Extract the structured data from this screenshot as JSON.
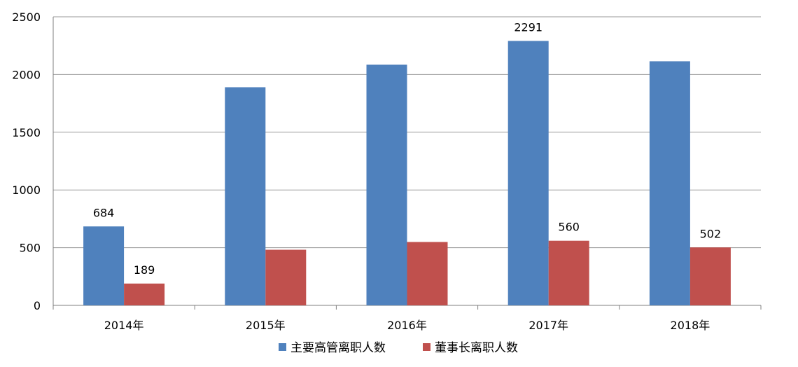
{
  "chart_data": {
    "type": "bar",
    "categories": [
      "2014年",
      "2015年",
      "2016年",
      "2017年",
      "2018年"
    ],
    "series": [
      {
        "name": "主要高管离职人数",
        "color": "#4F81BD",
        "values": [
          684,
          1890,
          2085,
          2291,
          2115
        ],
        "labels": [
          "684",
          "",
          "",
          "2291",
          ""
        ]
      },
      {
        "name": "董事长离职人数",
        "color": "#C0504D",
        "values": [
          189,
          482,
          549,
          560,
          502
        ],
        "labels": [
          "189",
          "",
          "",
          "560",
          "502"
        ]
      }
    ],
    "ylim": [
      0,
      2500
    ],
    "yticks": [
      "0",
      "500",
      "1000",
      "1500",
      "2000",
      "2500"
    ],
    "grid": true,
    "legend_position": "bottom"
  }
}
